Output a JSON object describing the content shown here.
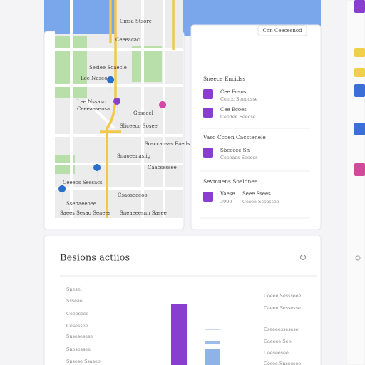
{
  "map": {
    "labels": [
      "Cmsa Stsorc",
      "Ceeeacac",
      "Sesiee Soaecle",
      "Lee Naseoo",
      "Lee Nssasc",
      "Ceeeaasensa",
      "Gosceel",
      "Sliceeco Sosee",
      "Sosccansss Eaeds",
      "Snaoeenasiig",
      "Caacsessee",
      "Ceeeos Sessacs",
      "Csaoseceoo",
      "Ssenaeeoee",
      "Saees Sesao Seaees",
      "Sneaeeesnn Sasee"
    ]
  },
  "panel": {
    "badge": "Cnn Ceecesnod",
    "sections": [
      {
        "heading": "Sneece Encidss",
        "items": [
          {
            "title": "Cee Ecsos",
            "subtitle": "Ceecc Seeucsse"
          },
          {
            "title": "Cee Ecoes",
            "subtitle": "Ceedee Seecse"
          }
        ]
      },
      {
        "heading": "Vaso Ccoen Cacstenele",
        "items": [
          {
            "title": "Sbcecee Sn",
            "subtitle": "Ceeeaes Secees"
          }
        ]
      },
      {
        "heading": "Sevmuens Soeldnee",
        "items": [
          {
            "title": "Vaese",
            "subtitle": "3000",
            "title2": "Seee Ssees",
            "subtitle2": "Cesee Scsossee"
          }
        ]
      }
    ]
  },
  "actions": {
    "title": "Besions actiios",
    "left_labels": [
      "Snesel",
      "Ssseae",
      "Ceeecese",
      "Cesessee",
      "Snsesesese",
      "Snosessee",
      "Snsese Ssaseo"
    ],
    "right_labels": [
      "Coeee Sesssoee",
      "Caeee Sessesse",
      "Cseeeessesese",
      "Caeeee Seo",
      "Coeseesee",
      "Cesee Snssesee"
    ]
  }
}
